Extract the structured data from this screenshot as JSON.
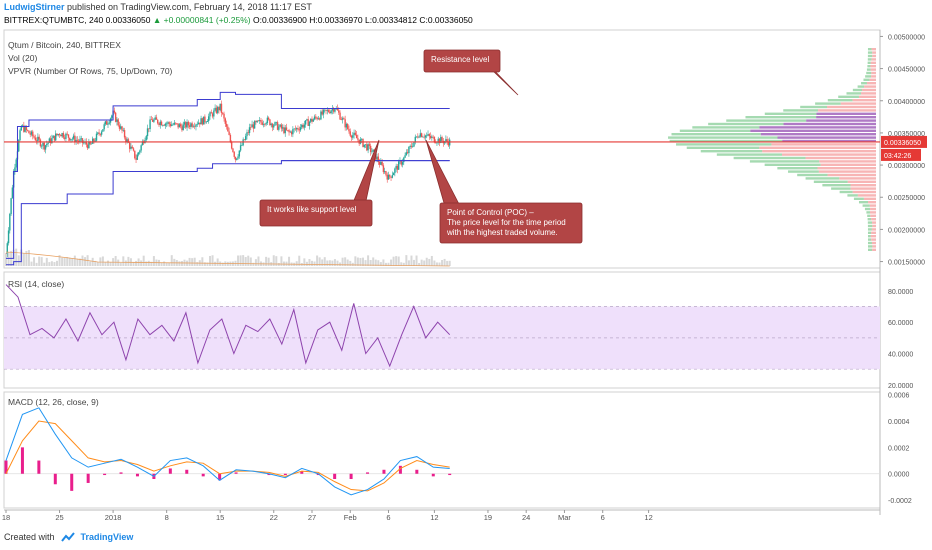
{
  "header": {
    "author": "LudwigStirner",
    "published_text": "published on TradingView.com, February 14, 2018 11:17 EST",
    "symbol_line_prefix": "BITTREX:QTUMBTC, 240",
    "last": "0.00336050",
    "change": "▲ +0.00000841 (+0.25%)",
    "ohlc": "O:0.00336900 H:0.00336970 L:0.00334812 C:0.00336050"
  },
  "main_pane": {
    "title": "Qtum / Bitcoin, 240, BITTREX",
    "vol_label": "Vol (20)",
    "vpvr_label": "VPVR (Number Of Rows, 75, Up/Down, 70)"
  },
  "rsi_pane": {
    "label": "RSI (14, close)"
  },
  "macd_pane": {
    "label": "MACD (12, 26, close, 9)"
  },
  "footer": {
    "created_with": "Created with",
    "brand": "TradingView"
  },
  "colors": {
    "up": "#26a69a",
    "down": "#ef5350",
    "channel": "#3b3bd0",
    "poc": "#e53935",
    "rsi": "#8e44ad",
    "rsi_band": "#efe0fb",
    "macd": "#2196f3",
    "signal": "#ff8c1a",
    "hist": "#e91e8c",
    "callout": "#b24545"
  },
  "chart_data": [
    {
      "type": "candlestick",
      "title": "Qtum / Bitcoin, 240, BITTREX",
      "x_tick_labels": [
        "18",
        "25",
        "2018",
        "8",
        "15",
        "22",
        "27",
        "Feb",
        "6",
        "12",
        "19",
        "24",
        "Mar",
        "6",
        "12"
      ],
      "y_axis_labels": [
        "0.00500000",
        "0.00450000",
        "0.00400000",
        "0.00350000",
        "0.00300000",
        "0.00250000",
        "0.00200000",
        "0.00150000"
      ],
      "ylim": [
        0.0014,
        0.0051
      ],
      "price_label": "0.00336050",
      "countdown_label": "03:42:26",
      "close_path_approx": [
        {
          "x": "18",
          "y": 0.0016
        },
        {
          "x": "19",
          "y": 0.0029
        },
        {
          "x": "20",
          "y": 0.0036
        },
        {
          "x": "23",
          "y": 0.0033
        },
        {
          "x": "25",
          "y": 0.0035
        },
        {
          "x": "29",
          "y": 0.0033
        },
        {
          "x": "2018",
          "y": 0.0038
        },
        {
          "x": "4",
          "y": 0.0031
        },
        {
          "x": "6",
          "y": 0.0037
        },
        {
          "x": "10",
          "y": 0.0036
        },
        {
          "x": "13",
          "y": 0.0037
        },
        {
          "x": "15",
          "y": 0.0039
        },
        {
          "x": "17",
          "y": 0.0031
        },
        {
          "x": "19",
          "y": 0.0036
        },
        {
          "x": "21",
          "y": 0.0037
        },
        {
          "x": "24",
          "y": 0.0035
        },
        {
          "x": "27",
          "y": 0.0037
        },
        {
          "x": "30",
          "y": 0.0039
        },
        {
          "x": "Feb",
          "y": 0.0035
        },
        {
          "x": "4",
          "y": 0.0032
        },
        {
          "x": "6",
          "y": 0.0028
        },
        {
          "x": "8",
          "y": 0.0031
        },
        {
          "x": "10",
          "y": 0.0035
        },
        {
          "x": "12",
          "y": 0.0034
        },
        {
          "x": "14",
          "y": 0.00336
        }
      ],
      "horizontal_levels": {
        "resistance": 0.00388,
        "poc": 0.00336,
        "support": 0.00307
      },
      "annotations": [
        "Resistance level",
        "It works like support level",
        "Point of Control (POC) – The price level for the time period with the highest traded volume."
      ]
    },
    {
      "type": "line",
      "name": "RSI (14, close)",
      "y_axis_labels": [
        "80.0000",
        "60.0000",
        "40.0000",
        "20.0000"
      ],
      "ylim": [
        18,
        92
      ],
      "band": [
        30,
        70
      ],
      "values_approx": [
        84,
        76,
        52,
        56,
        50,
        62,
        48,
        66,
        52,
        60,
        36,
        62,
        52,
        58,
        48,
        66,
        34,
        55,
        62,
        40,
        58,
        54,
        62,
        46,
        68,
        34,
        55,
        60,
        42,
        72,
        40,
        50,
        32,
        52,
        70,
        50,
        60,
        52
      ]
    },
    {
      "type": "line",
      "name": "MACD (12, 26, close, 9)",
      "y_axis_labels": [
        "0.0006",
        "0.0004",
        "0.0002",
        "0.0000",
        "-0.0002"
      ],
      "ylim": [
        -0.00026,
        0.00062
      ],
      "macd_approx": [
        0.0001,
        0.00045,
        0.0005,
        0.0003,
        0.00012,
        5e-05,
        8e-05,
        0.00011,
        5e-05,
        -2e-05,
        0.0001,
        0.00012,
        6e-05,
        -5e-05,
        3e-05,
        2e-05,
        0.0,
        -3e-05,
        4e-05,
        0.0,
        -0.0001,
        -0.00016,
        -0.00012,
        -4e-05,
        0.0001,
        0.00013,
        5e-05,
        4e-05
      ],
      "signal_approx": [
        0.0,
        0.00025,
        0.0004,
        0.00038,
        0.00025,
        0.00012,
        9e-05,
        0.0001,
        7e-05,
        2e-05,
        6e-05,
        9e-05,
        8e-05,
        0.0,
        2e-05,
        2e-05,
        1e-05,
        -2e-05,
        2e-05,
        1e-05,
        -6e-05,
        -0.00012,
        -0.00013,
        -7e-05,
        4e-05,
        0.0001,
        7e-05,
        5e-05
      ]
    }
  ]
}
